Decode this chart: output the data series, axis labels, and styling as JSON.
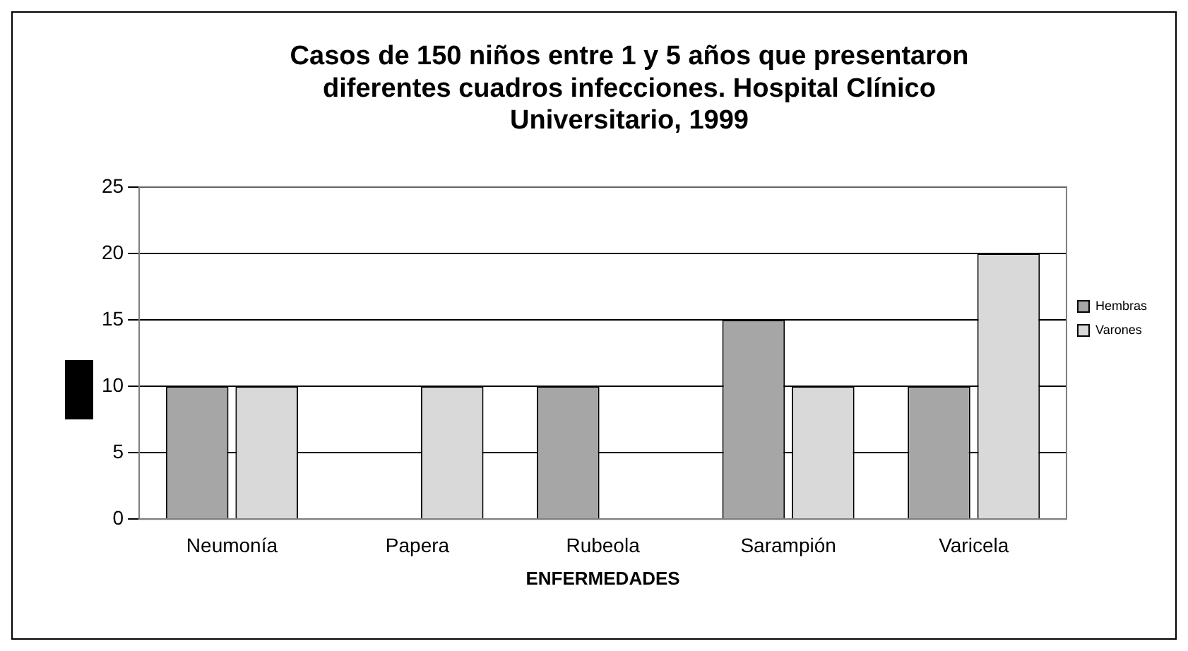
{
  "chart_data": {
    "type": "bar",
    "title": "Casos de 150 niños entre 1 y 5 años que presentaron diferentes cuadros infecciones. Hospital Clínico Universitario, 1999",
    "xlabel": "ENFERMEDADES",
    "categories": [
      "Neumonía",
      "Papera",
      "Rubeola",
      "Sarampión",
      "Varicela"
    ],
    "series": [
      {
        "name": "Hembras",
        "color": "#a6a6a6",
        "values": [
          10,
          0,
          10,
          15,
          10
        ]
      },
      {
        "name": "Varones",
        "color": "#d9d9d9",
        "values": [
          10,
          10,
          0,
          10,
          20
        ]
      }
    ],
    "ylim": [
      0,
      25
    ],
    "yticks": [
      0,
      5,
      10,
      15,
      20,
      25
    ],
    "grid": "y",
    "legend": "right"
  }
}
